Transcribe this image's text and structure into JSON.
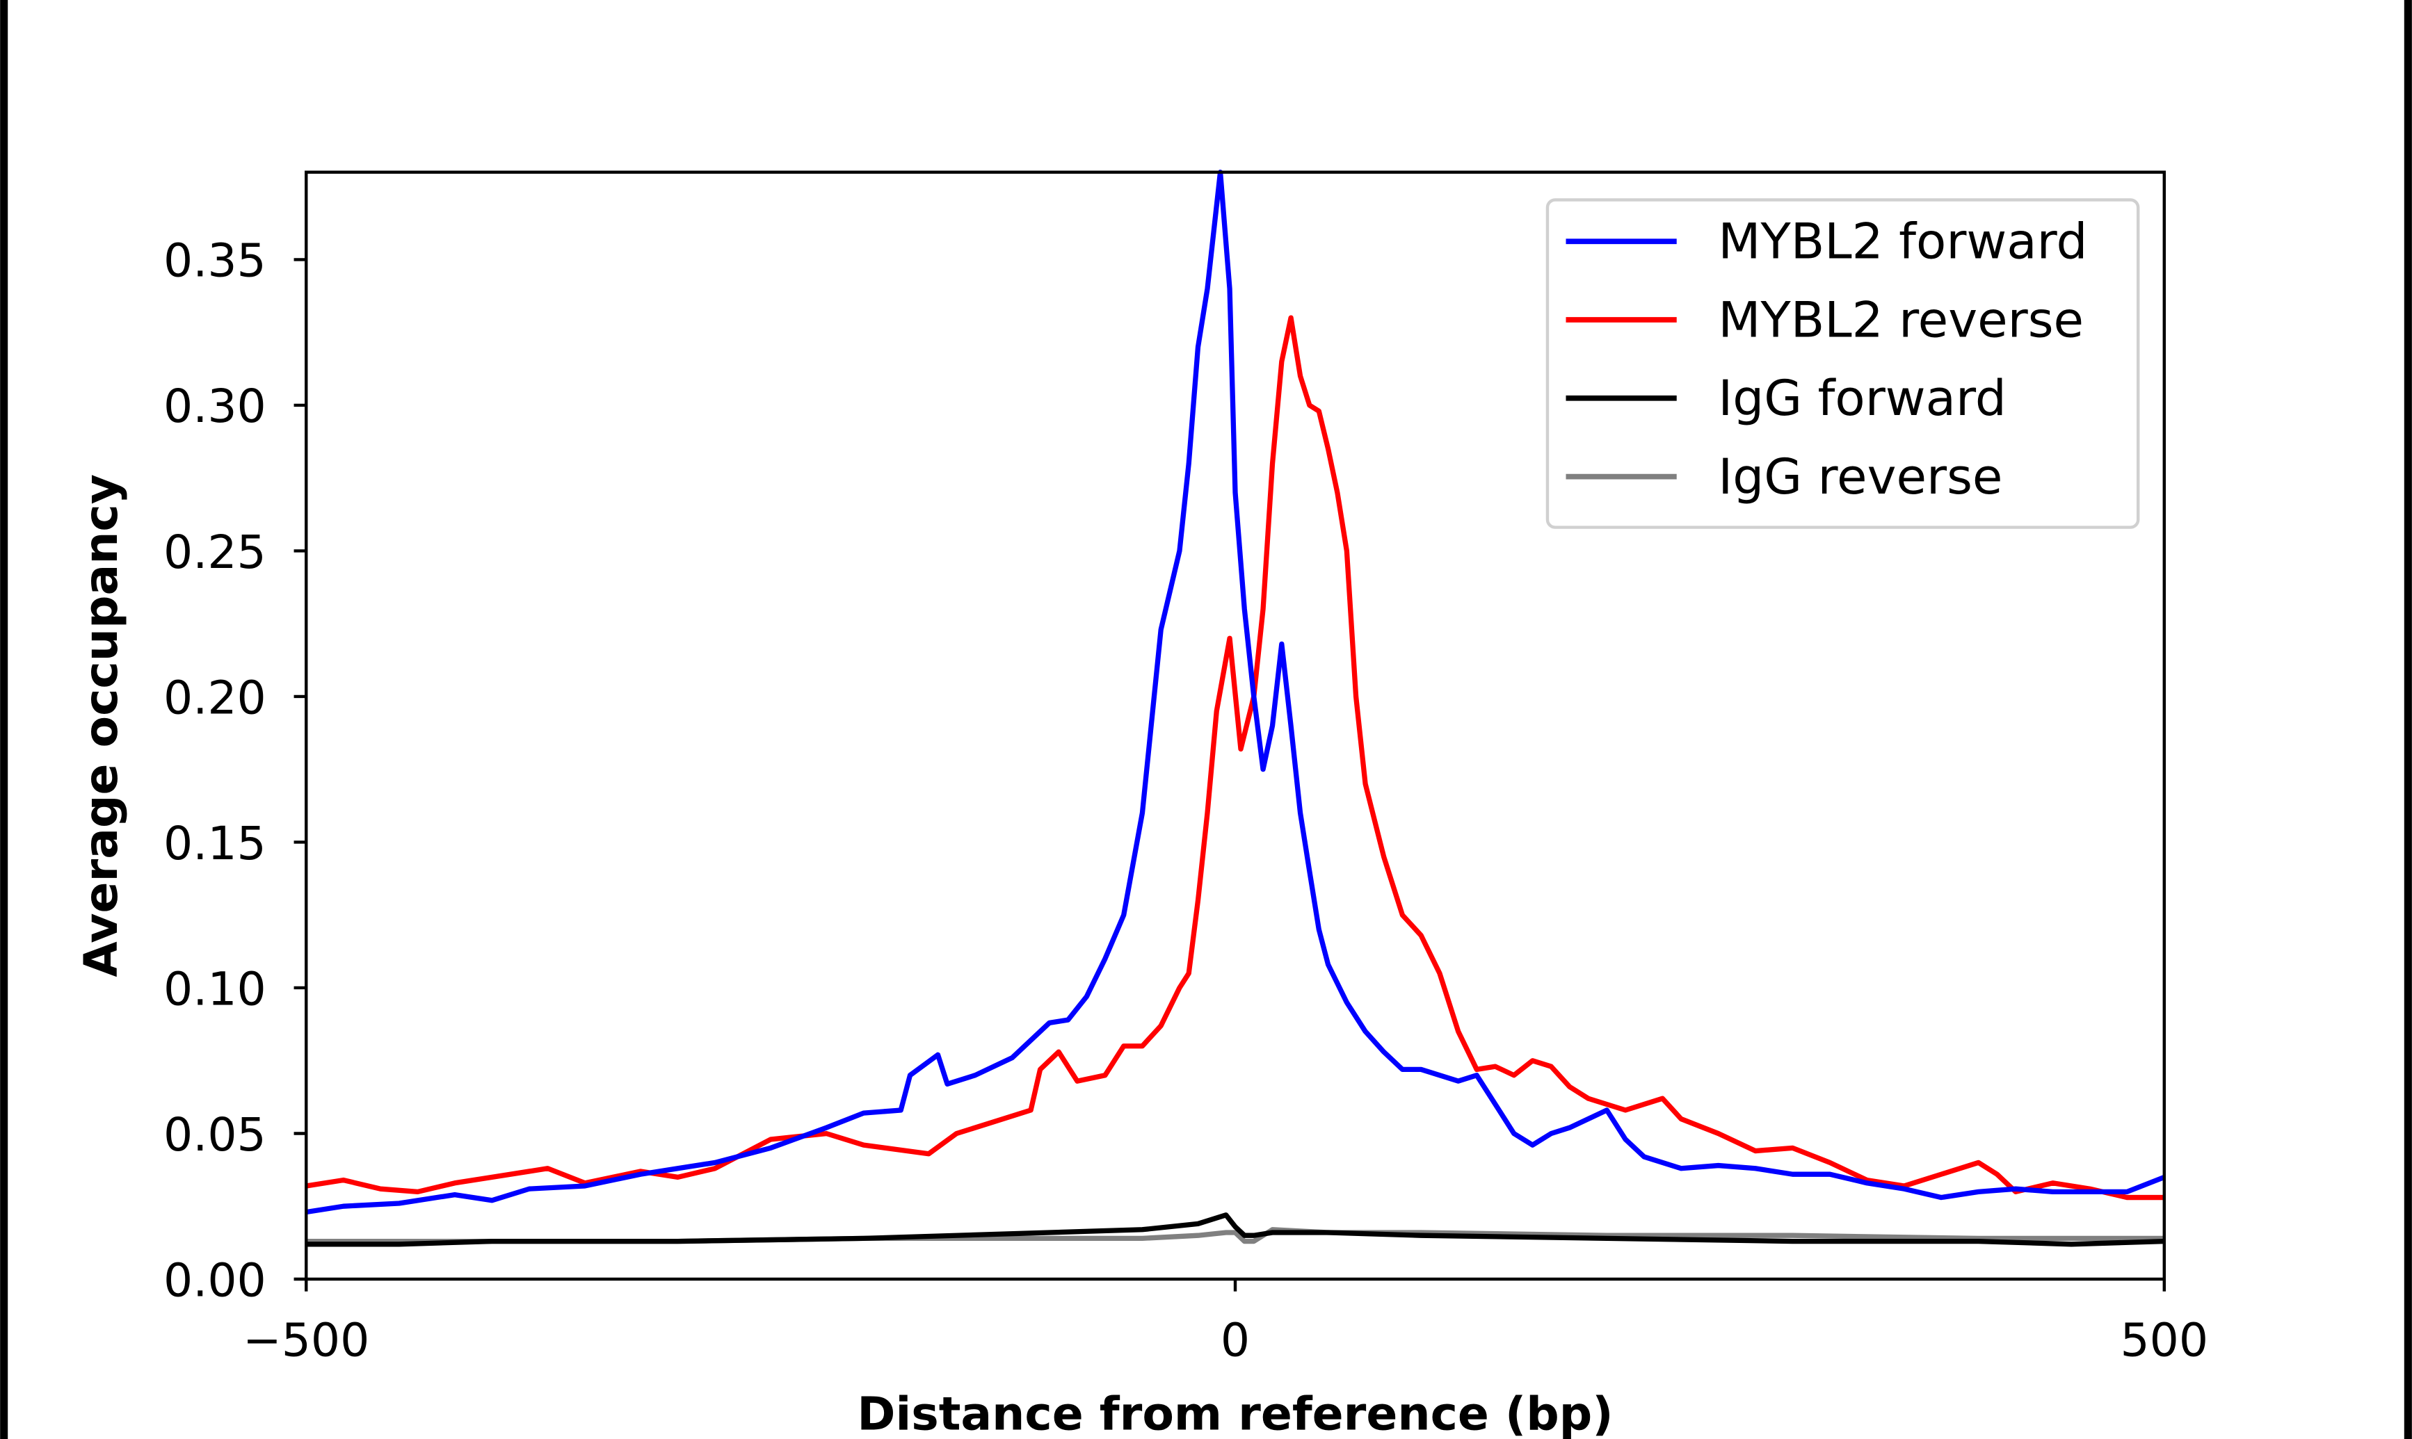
{
  "chart_data": {
    "type": "line",
    "title": "",
    "xlabel": "Distance from reference (bp)",
    "ylabel": "Average occupancy",
    "xlim": [
      -500,
      500
    ],
    "ylim": [
      0,
      0.38
    ],
    "xticks": [
      -500,
      0,
      500
    ],
    "xtick_labels": [
      "−500",
      "0",
      "500"
    ],
    "yticks": [
      0,
      0.05,
      0.1,
      0.15,
      0.2,
      0.25,
      0.3,
      0.35
    ],
    "ytick_labels": [
      "0.00",
      "0.05",
      "0.10",
      "0.15",
      "0.20",
      "0.25",
      "0.30",
      "0.35"
    ],
    "grid": false,
    "legend_position": "top-right",
    "series": [
      {
        "name": "MYBL2 forward",
        "color": "#0000ff",
        "x": [
          -500,
          -480,
          -450,
          -420,
          -400,
          -380,
          -350,
          -320,
          -300,
          -280,
          -250,
          -220,
          -200,
          -180,
          -175,
          -160,
          -155,
          -140,
          -120,
          -100,
          -90,
          -80,
          -70,
          -60,
          -50,
          -40,
          -30,
          -25,
          -20,
          -15,
          -8,
          -3,
          0,
          5,
          10,
          15,
          20,
          25,
          30,
          35,
          40,
          45,
          50,
          60,
          70,
          80,
          90,
          100,
          110,
          120,
          130,
          140,
          150,
          160,
          170,
          180,
          200,
          210,
          220,
          240,
          260,
          280,
          300,
          320,
          340,
          360,
          380,
          400,
          420,
          440,
          460,
          480,
          500
        ],
        "y": [
          0.023,
          0.025,
          0.026,
          0.029,
          0.027,
          0.031,
          0.032,
          0.036,
          0.038,
          0.04,
          0.045,
          0.052,
          0.057,
          0.058,
          0.07,
          0.077,
          0.067,
          0.07,
          0.076,
          0.088,
          0.089,
          0.097,
          0.11,
          0.125,
          0.16,
          0.223,
          0.25,
          0.28,
          0.32,
          0.34,
          0.38,
          0.34,
          0.27,
          0.23,
          0.2,
          0.175,
          0.19,
          0.218,
          0.19,
          0.16,
          0.14,
          0.12,
          0.108,
          0.095,
          0.085,
          0.078,
          0.072,
          0.072,
          0.07,
          0.068,
          0.07,
          0.06,
          0.05,
          0.046,
          0.05,
          0.052,
          0.058,
          0.048,
          0.042,
          0.038,
          0.039,
          0.038,
          0.036,
          0.036,
          0.033,
          0.031,
          0.028,
          0.03,
          0.031,
          0.03,
          0.03,
          0.03,
          0.035
        ]
      },
      {
        "name": "MYBL2 reverse",
        "color": "#ff0000",
        "x": [
          -500,
          -480,
          -460,
          -440,
          -420,
          -400,
          -370,
          -350,
          -320,
          -300,
          -280,
          -250,
          -220,
          -200,
          -165,
          -150,
          -130,
          -110,
          -105,
          -95,
          -85,
          -70,
          -60,
          -50,
          -40,
          -30,
          -25,
          -20,
          -15,
          -10,
          -3,
          3,
          10,
          15,
          20,
          25,
          30,
          35,
          40,
          45,
          50,
          55,
          60,
          65,
          70,
          80,
          90,
          100,
          110,
          120,
          130,
          140,
          150,
          160,
          170,
          180,
          190,
          200,
          210,
          230,
          240,
          260,
          280,
          300,
          320,
          340,
          360,
          380,
          400,
          410,
          420,
          440,
          460,
          480,
          500
        ],
        "y": [
          0.032,
          0.034,
          0.031,
          0.03,
          0.033,
          0.035,
          0.038,
          0.033,
          0.037,
          0.035,
          0.038,
          0.048,
          0.05,
          0.046,
          0.043,
          0.05,
          0.054,
          0.058,
          0.072,
          0.078,
          0.068,
          0.07,
          0.08,
          0.08,
          0.087,
          0.1,
          0.105,
          0.13,
          0.16,
          0.195,
          0.22,
          0.182,
          0.2,
          0.23,
          0.28,
          0.315,
          0.33,
          0.31,
          0.3,
          0.298,
          0.285,
          0.27,
          0.25,
          0.2,
          0.17,
          0.145,
          0.125,
          0.118,
          0.105,
          0.085,
          0.072,
          0.073,
          0.07,
          0.075,
          0.073,
          0.066,
          0.062,
          0.06,
          0.058,
          0.062,
          0.055,
          0.05,
          0.044,
          0.045,
          0.04,
          0.034,
          0.032,
          0.036,
          0.04,
          0.036,
          0.03,
          0.033,
          0.031,
          0.028,
          0.028
        ]
      },
      {
        "name": "IgG forward",
        "color": "#000000",
        "x": [
          -500,
          -450,
          -400,
          -300,
          -200,
          -100,
          -50,
          -20,
          -5,
          0,
          5,
          10,
          20,
          50,
          100,
          200,
          300,
          400,
          450,
          500
        ],
        "y": [
          0.012,
          0.012,
          0.013,
          0.013,
          0.014,
          0.016,
          0.017,
          0.019,
          0.022,
          0.018,
          0.015,
          0.015,
          0.016,
          0.016,
          0.015,
          0.014,
          0.013,
          0.013,
          0.012,
          0.013
        ]
      },
      {
        "name": "IgG reverse",
        "color": "#808080",
        "x": [
          -500,
          -450,
          -400,
          -300,
          -200,
          -100,
          -50,
          -20,
          -5,
          0,
          5,
          10,
          20,
          50,
          100,
          200,
          300,
          400,
          450,
          500
        ],
        "y": [
          0.013,
          0.013,
          0.013,
          0.013,
          0.014,
          0.014,
          0.014,
          0.015,
          0.016,
          0.016,
          0.013,
          0.013,
          0.017,
          0.016,
          0.016,
          0.015,
          0.015,
          0.014,
          0.014,
          0.014
        ]
      }
    ]
  }
}
